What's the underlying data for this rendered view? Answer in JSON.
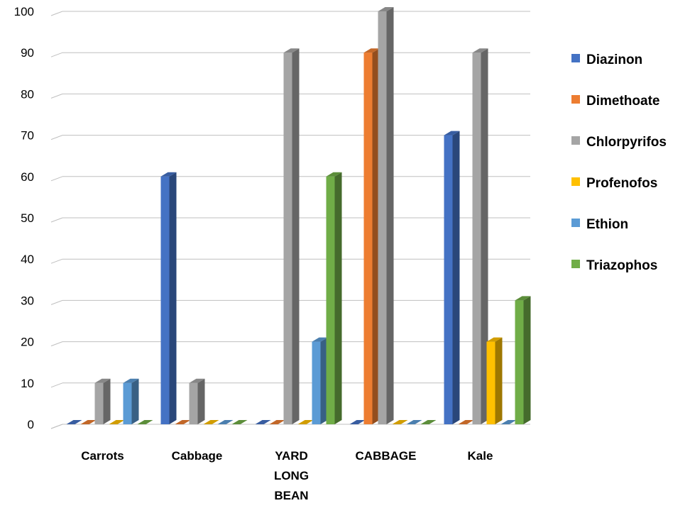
{
  "chart_data": {
    "type": "bar",
    "title": "",
    "xlabel": "",
    "ylabel": "",
    "ylim": [
      0,
      100
    ],
    "yticks": [
      0,
      10,
      20,
      30,
      40,
      50,
      60,
      70,
      80,
      90,
      100
    ],
    "grid": true,
    "style": "3d-clustered-column",
    "legend_position": "right",
    "categories": [
      [
        "Carrots"
      ],
      [
        "Cabbage"
      ],
      [
        "YARD",
        "LONG",
        "BEAN"
      ],
      [
        "CABBAGE"
      ],
      [
        "Kale"
      ]
    ],
    "series": [
      {
        "name": "Diazinon",
        "color": "#4472C4",
        "values": [
          0,
          60,
          0,
          0,
          70
        ]
      },
      {
        "name": "Dimethoate",
        "color": "#ED7D31",
        "values": [
          0,
          0,
          0,
          90,
          0
        ]
      },
      {
        "name": "Chlorpyrifos",
        "color": "#A5A5A5",
        "values": [
          10,
          10,
          90,
          100,
          90
        ]
      },
      {
        "name": "Profenofos",
        "color": "#FFC000",
        "values": [
          0,
          0,
          0,
          0,
          20
        ]
      },
      {
        "name": "Ethion",
        "color": "#5B9BD5",
        "values": [
          10,
          0,
          20,
          0,
          0
        ]
      },
      {
        "name": "Triazophos",
        "color": "#70AD47",
        "values": [
          0,
          0,
          60,
          0,
          30
        ]
      }
    ]
  }
}
